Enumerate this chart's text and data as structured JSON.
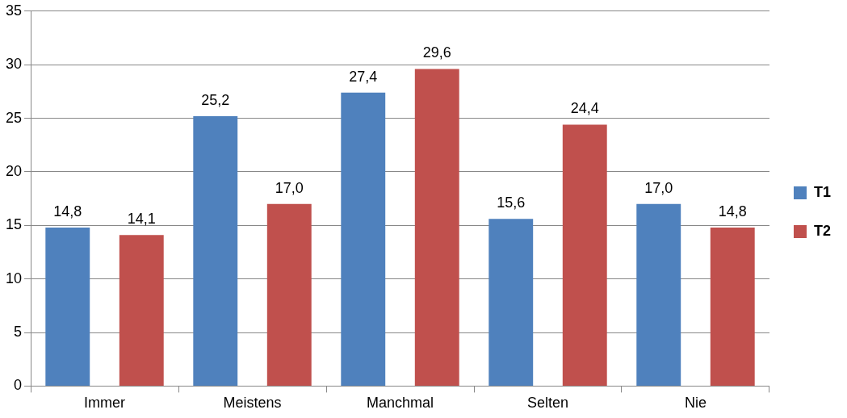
{
  "chart_data": {
    "type": "bar",
    "categories": [
      "Immer",
      "Meistens",
      "Manchmal",
      "Selten",
      "Nie"
    ],
    "series": [
      {
        "name": "T1",
        "color": "#4f81bd",
        "values": [
          14.8,
          25.2,
          27.4,
          15.6,
          17.0
        ],
        "value_labels": [
          "14,8",
          "25,2",
          "27,4",
          "15,6",
          "17,0"
        ]
      },
      {
        "name": "T2",
        "color": "#c0504d",
        "values": [
          14.1,
          17.0,
          29.6,
          24.4,
          14.8
        ],
        "value_labels": [
          "14,1",
          "17,0",
          "29,6",
          "24,4",
          "14,8"
        ]
      }
    ],
    "ylim": [
      0,
      35
    ],
    "yticks": [
      0,
      5,
      10,
      15,
      20,
      25,
      30,
      35
    ],
    "grid": "y",
    "legend": "right"
  }
}
